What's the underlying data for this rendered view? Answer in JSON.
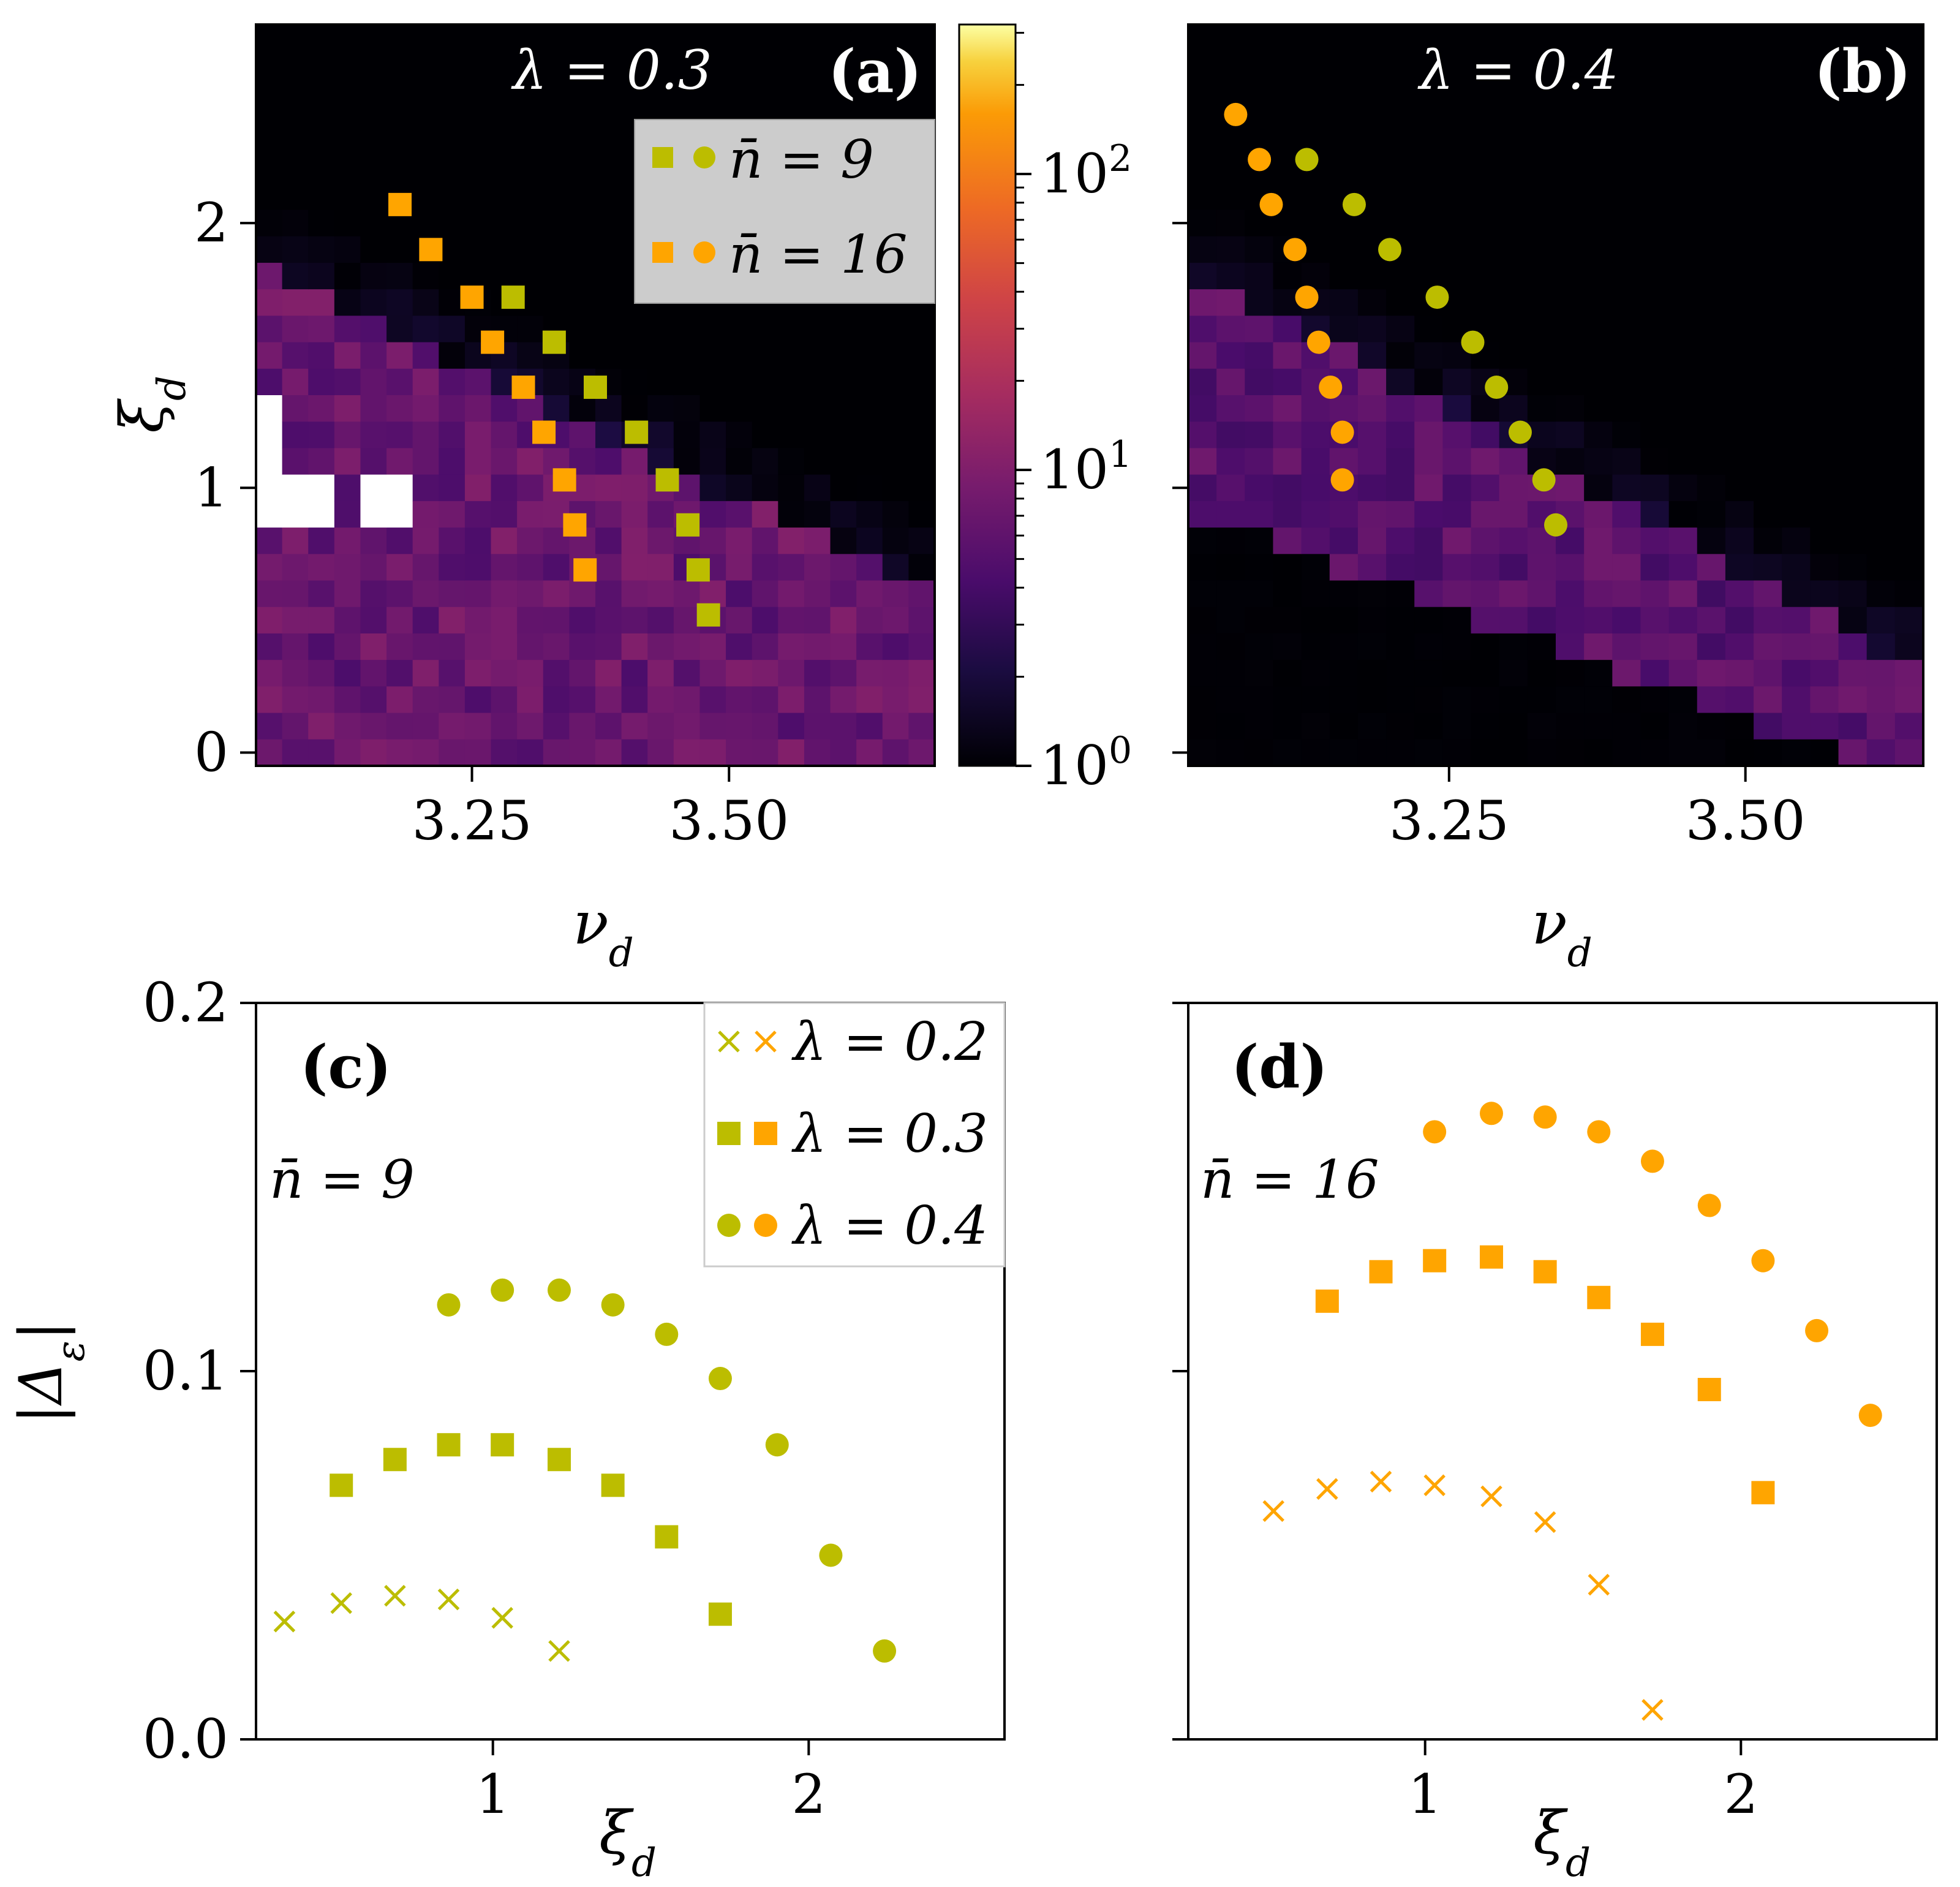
{
  "colors": {
    "green": "#bcbd00",
    "orange": "#ffa500",
    "heat_bg": "#000004"
  },
  "chart_data": [
    {
      "panel": "a",
      "type": "heatmap",
      "tag": "(a)",
      "lambda_label": "λ = 0.3",
      "xlabel": "ν_d",
      "ylabel": "ξ_d",
      "xlim": [
        3.04,
        3.7
      ],
      "ylim": [
        -0.05,
        2.75
      ],
      "xticks": [
        3.25,
        3.5
      ],
      "xtick_labels": [
        "3.25",
        "3.50"
      ],
      "yticks": [
        0,
        1,
        2
      ],
      "ytick_labels": [
        "0",
        "1",
        "2"
      ],
      "heat": {
        "lower_c": 1.07,
        "lower_m": 1.15,
        "upper_c": 7.55,
        "upper_m": 1.88,
        "peak_log": 0.85,
        "white_holes": [
          [
            3.04,
            3.07,
            0.82,
            1.35
          ],
          [
            3.07,
            3.11,
            0.82,
            1.07
          ],
          [
            3.13,
            3.2,
            0.82,
            1.07
          ]
        ]
      },
      "legend": {
        "entries": [
          {
            "label": "n̄ = 9",
            "color": "#bcbd00"
          },
          {
            "label": "n̄ = 16",
            "color": "#ffa500"
          }
        ]
      },
      "series": [
        {
          "name": "n̄ = 9",
          "marker": "square",
          "color": "#bcbd00",
          "x": [
            3.29,
            3.33,
            3.37,
            3.41,
            3.44,
            3.46,
            3.47,
            3.48
          ],
          "y": [
            1.72,
            1.55,
            1.38,
            1.21,
            1.03,
            0.86,
            0.69,
            0.52
          ]
        },
        {
          "name": "n̄ = 16",
          "marker": "square",
          "color": "#ffa500",
          "x": [
            3.18,
            3.21,
            3.25,
            3.27,
            3.3,
            3.32,
            3.34,
            3.35,
            3.36
          ],
          "y": [
            2.07,
            1.9,
            1.72,
            1.55,
            1.38,
            1.21,
            1.03,
            0.86,
            0.69
          ]
        }
      ]
    },
    {
      "panel": "colorbar",
      "type": "colorbar",
      "scale": "log",
      "range": [
        1,
        320
      ],
      "ticks": [
        {
          "value": 1,
          "label": "10",
          "exp": "0"
        },
        {
          "value": 10,
          "label": "10",
          "exp": "1"
        },
        {
          "value": 100,
          "label": "10",
          "exp": "2"
        }
      ]
    },
    {
      "panel": "b",
      "type": "heatmap",
      "tag": "(b)",
      "lambda_label": "λ = 0.4",
      "xlabel": "ν_d",
      "xlim": [
        3.03,
        3.65
      ],
      "ylim": [
        -0.05,
        2.75
      ],
      "xticks": [
        3.25,
        3.5
      ],
      "xtick_labels": [
        "3.25",
        "3.50"
      ],
      "yticks": [
        0,
        1,
        2
      ],
      "heat": {
        "lower_c": 5.9,
        "lower_m": 1.65,
        "upper_c": 9.25,
        "upper_m": 2.45,
        "peak_log": 0.75,
        "white_holes": []
      },
      "series": [
        {
          "name": "n̄ = 9",
          "marker": "circle",
          "color": "#bcbd00",
          "x": [
            3.13,
            3.17,
            3.2,
            3.24,
            3.27,
            3.29,
            3.31,
            3.33,
            3.34
          ],
          "y": [
            2.24,
            2.07,
            1.9,
            1.72,
            1.55,
            1.38,
            1.21,
            1.03,
            0.86
          ]
        },
        {
          "name": "n̄ = 16",
          "marker": "circle",
          "color": "#ffa500",
          "x": [
            3.07,
            3.09,
            3.1,
            3.12,
            3.13,
            3.14,
            3.15,
            3.16,
            3.16
          ],
          "y": [
            2.41,
            2.24,
            2.07,
            1.9,
            1.72,
            1.55,
            1.38,
            1.21,
            1.03
          ]
        }
      ]
    },
    {
      "panel": "c",
      "type": "scatter",
      "tag": "(c)",
      "nbar_label": "n̄ = 9",
      "xlabel": "ξ_d",
      "ylabel": "|Δ_ε|",
      "xlim": [
        0.25,
        2.62
      ],
      "ylim": [
        0,
        0.2
      ],
      "xticks": [
        1,
        2
      ],
      "xtick_labels": [
        "1",
        "2"
      ],
      "yticks": [
        0,
        0.1,
        0.2
      ],
      "ytick_labels": [
        "0.0",
        "0.1",
        "0.2"
      ],
      "legend": {
        "entries": [
          {
            "label": "λ = 0.2",
            "marker": "x"
          },
          {
            "label": "λ = 0.3",
            "marker": "square"
          },
          {
            "label": "λ = 0.4",
            "marker": "circle"
          }
        ]
      },
      "series": [
        {
          "name": "λ = 0.2",
          "marker": "x",
          "color": "#bcbd00",
          "x": [
            0.34,
            0.52,
            0.69,
            0.86,
            1.03,
            1.21
          ],
          "y": [
            0.032,
            0.037,
            0.039,
            0.038,
            0.033,
            0.024
          ]
        },
        {
          "name": "λ = 0.3",
          "marker": "square",
          "color": "#bcbd00",
          "x": [
            0.52,
            0.69,
            0.86,
            1.03,
            1.21,
            1.38,
            1.55,
            1.72
          ],
          "y": [
            0.069,
            0.076,
            0.08,
            0.08,
            0.076,
            0.069,
            0.055,
            0.034
          ]
        },
        {
          "name": "λ = 0.4",
          "marker": "circle",
          "color": "#bcbd00",
          "x": [
            0.86,
            1.03,
            1.21,
            1.38,
            1.55,
            1.72,
            1.9,
            2.07,
            2.24
          ],
          "y": [
            0.118,
            0.122,
            0.122,
            0.118,
            0.11,
            0.098,
            0.08,
            0.05,
            0.024
          ]
        }
      ]
    },
    {
      "panel": "d",
      "type": "scatter",
      "tag": "(d)",
      "nbar_label": "n̄ = 16",
      "xlabel": "ξ_d",
      "xlim": [
        0.25,
        2.62
      ],
      "ylim": [
        0,
        0.2
      ],
      "xticks": [
        1,
        2
      ],
      "xtick_labels": [
        "1",
        "2"
      ],
      "yticks": [
        0,
        0.1,
        0.2
      ],
      "series": [
        {
          "name": "λ = 0.2",
          "marker": "x",
          "color": "#ffa500",
          "x": [
            0.52,
            0.69,
            0.86,
            1.03,
            1.21,
            1.38,
            1.55,
            1.72
          ],
          "y": [
            0.062,
            0.068,
            0.07,
            0.069,
            0.066,
            0.059,
            0.042,
            0.008
          ]
        },
        {
          "name": "λ = 0.3",
          "marker": "square",
          "color": "#ffa500",
          "x": [
            0.69,
            0.86,
            1.03,
            1.21,
            1.38,
            1.55,
            1.72,
            1.9,
            2.07
          ],
          "y": [
            0.119,
            0.127,
            0.13,
            0.131,
            0.127,
            0.12,
            0.11,
            0.095,
            0.067
          ]
        },
        {
          "name": "λ = 0.4",
          "marker": "circle",
          "color": "#ffa500",
          "x": [
            1.03,
            1.21,
            1.38,
            1.55,
            1.72,
            1.9,
            2.07,
            2.24,
            2.41
          ],
          "y": [
            0.165,
            0.17,
            0.169,
            0.165,
            0.157,
            0.145,
            0.13,
            0.111,
            0.088
          ]
        }
      ]
    }
  ]
}
